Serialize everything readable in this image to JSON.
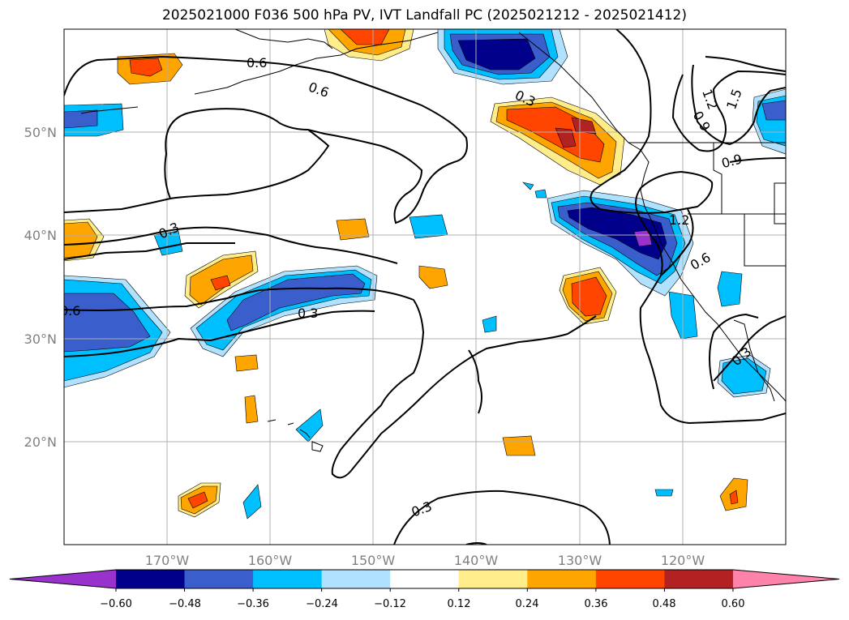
{
  "title": "2025021000 F036 500 hPa PV, IVT Landfall PC (2025021212 - 2025021412)",
  "map": {
    "lon_range": [
      -180,
      -110
    ],
    "lat_range": [
      10,
      60
    ],
    "lon_ticks": [
      "170°W",
      "160°W",
      "150°W",
      "140°W",
      "130°W",
      "120°W"
    ],
    "lat_ticks": [
      "50°N",
      "40°N",
      "30°N",
      "20°N"
    ],
    "grid": true,
    "contour_labels": [
      "0.6",
      "0.6",
      "0.3",
      "0.3",
      "0.6",
      "0.3",
      "0.3",
      "1.2",
      "0.6",
      "1.5",
      "1.2",
      "0.9",
      "0.9",
      "0.3"
    ]
  },
  "colorbar": {
    "tick_labels": [
      "−0.60",
      "−0.48",
      "−0.36",
      "−0.24",
      "−0.12",
      "0.12",
      "0.24",
      "0.36",
      "0.48",
      "0.60"
    ],
    "colors": [
      "#9932cc",
      "#00008b",
      "#3a5fcd",
      "#00bfff",
      "#b0e2ff",
      "#ffffff",
      "#ffec8b",
      "#ffa500",
      "#ff4500",
      "#b22222",
      "#ff82ab"
    ]
  }
}
